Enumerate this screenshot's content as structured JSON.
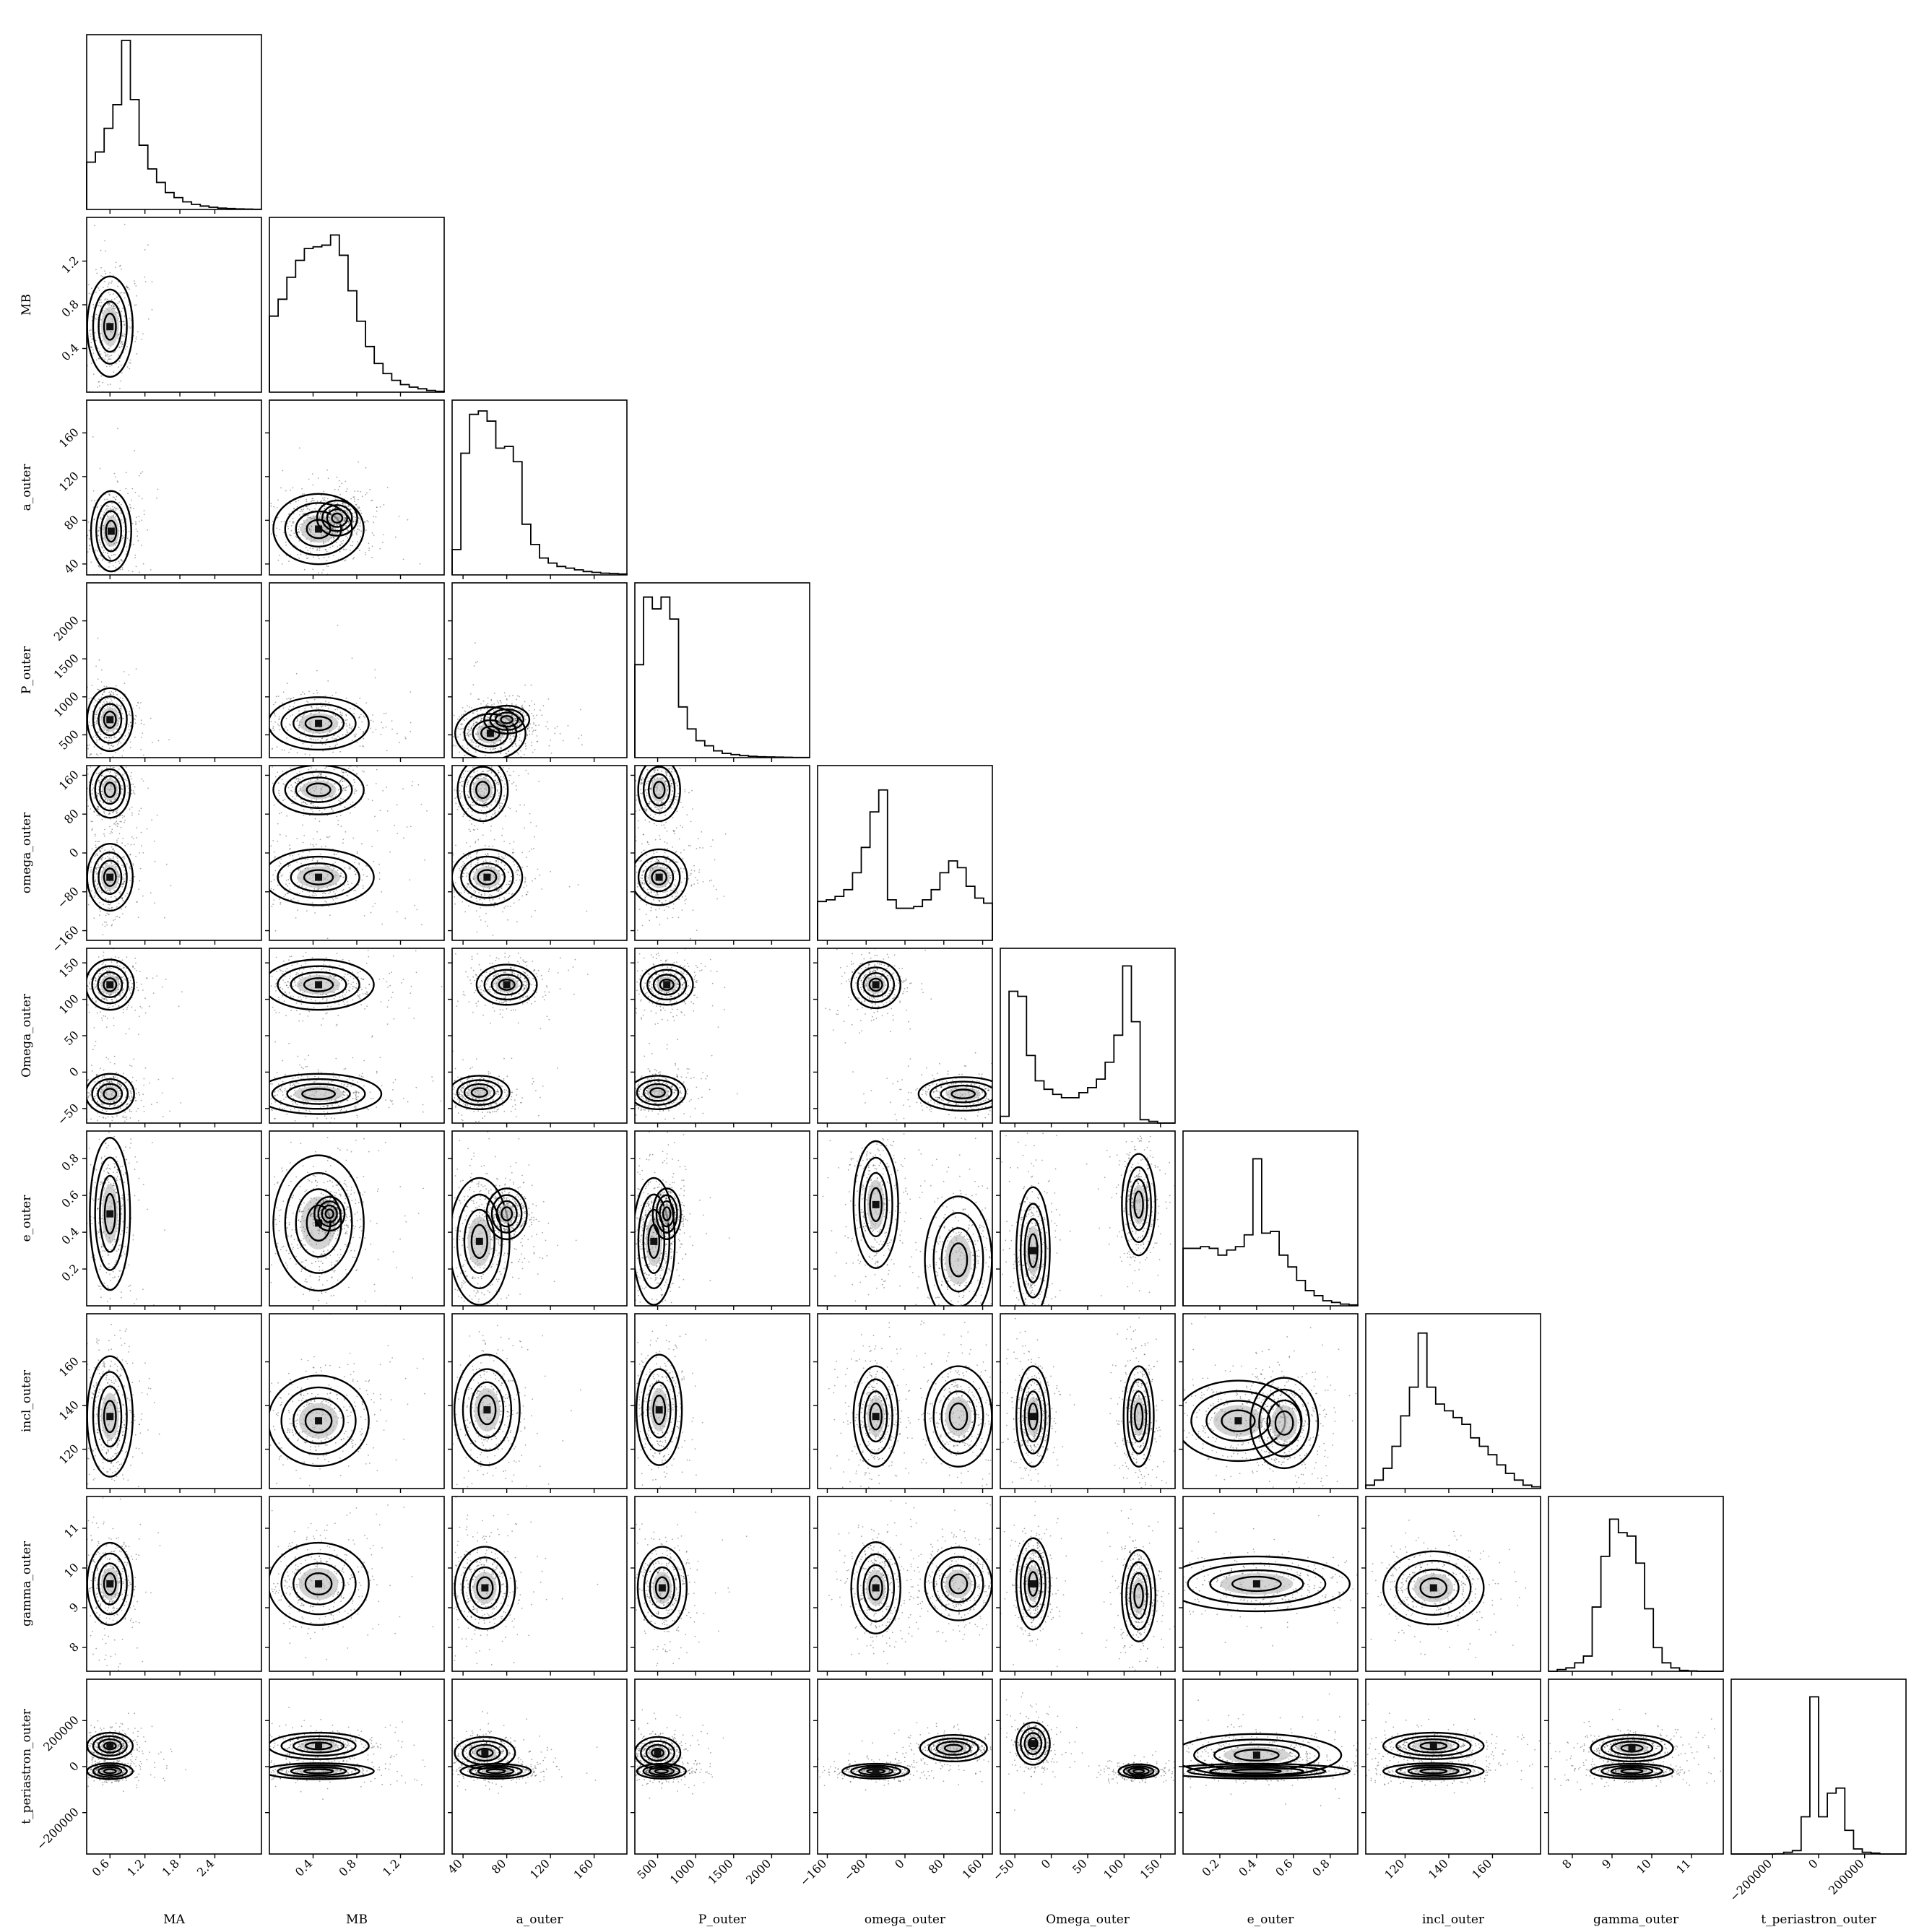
{
  "chart_data": {
    "type": "corner",
    "parameters": [
      {
        "name": "MA",
        "range": [
          0.2,
          3.2
        ],
        "ticks": [
          0.6,
          1.2,
          1.8,
          2.4
        ],
        "tick_labels": [
          "0.6",
          "1.2",
          "1.8",
          "2.4"
        ],
        "mode": 0.6,
        "hist": [
          0.28,
          0.34,
          0.48,
          0.62,
          1.0,
          0.65,
          0.38,
          0.24,
          0.16,
          0.1,
          0.07,
          0.045,
          0.03,
          0.02,
          0.013,
          0.008,
          0.005,
          0.003,
          0.002,
          0.001
        ]
      },
      {
        "name": "MB",
        "range": [
          0.0,
          1.6
        ],
        "ticks": [
          0.4,
          0.8,
          1.2
        ],
        "tick_labels": [
          "0.4",
          "0.8",
          "1.2"
        ],
        "mode": 0.5,
        "hist": [
          0.45,
          0.55,
          0.68,
          0.78,
          0.85,
          0.86,
          0.87,
          0.93,
          0.81,
          0.6,
          0.42,
          0.27,
          0.17,
          0.11,
          0.07,
          0.045,
          0.03,
          0.02,
          0.01,
          0.005
        ]
      },
      {
        "name": "a_outer",
        "range": [
          30,
          190
        ],
        "ticks": [
          40,
          80,
          120,
          160
        ],
        "tick_labels": [
          "40",
          "80",
          "120",
          "160"
        ],
        "mode": 80,
        "hist": [
          0.15,
          0.72,
          0.95,
          0.97,
          0.91,
          0.75,
          0.76,
          0.67,
          0.3,
          0.18,
          0.1,
          0.07,
          0.05,
          0.04,
          0.03,
          0.02,
          0.015,
          0.01,
          0.008,
          0.005
        ]
      },
      {
        "name": "P_outer",
        "range": [
          200,
          2500
        ],
        "ticks": [
          500,
          1000,
          1500,
          2000
        ],
        "tick_labels": [
          "500",
          "1000",
          "1500",
          "2000"
        ],
        "mode": 620,
        "hist": [
          0.55,
          0.95,
          0.88,
          0.95,
          0.82,
          0.3,
          0.17,
          0.1,
          0.07,
          0.04,
          0.025,
          0.018,
          0.012,
          0.008,
          0.005,
          0.004,
          0.003,
          0.002,
          0.001,
          0.001
        ]
      },
      {
        "name": "omega_outer",
        "range": [
          -180,
          180
        ],
        "ticks": [
          -160,
          -80,
          0,
          80,
          160
        ],
        "tick_labels": [
          "−160",
          "−80",
          "0",
          "80",
          "160"
        ],
        "mode": -60,
        "hist": [
          0.23,
          0.24,
          0.26,
          0.3,
          0.4,
          0.55,
          0.76,
          0.89,
          0.24,
          0.19,
          0.19,
          0.2,
          0.24,
          0.3,
          0.4,
          0.47,
          0.43,
          0.32,
          0.25,
          0.22
        ]
      },
      {
        "name": "Omega_outer",
        "range": [
          -70,
          170
        ],
        "ticks": [
          -50,
          0,
          50,
          100,
          150
        ],
        "tick_labels": [
          "−50",
          "0",
          "50",
          "100",
          "150"
        ],
        "mode": 120,
        "hist": [
          0.04,
          0.78,
          0.75,
          0.4,
          0.25,
          0.2,
          0.17,
          0.15,
          0.15,
          0.18,
          0.21,
          0.26,
          0.36,
          0.52,
          0.93,
          0.6,
          0.02,
          0.01,
          0.0,
          0.0
        ]
      },
      {
        "name": "e_outer",
        "range": [
          0.0,
          0.95
        ],
        "ticks": [
          0.2,
          0.4,
          0.6,
          0.8
        ],
        "tick_labels": [
          "0.2",
          "0.4",
          "0.6",
          "0.8"
        ],
        "mode": 0.5,
        "hist": [
          0.34,
          0.34,
          0.35,
          0.34,
          0.3,
          0.33,
          0.35,
          0.42,
          0.87,
          0.43,
          0.44,
          0.3,
          0.23,
          0.15,
          0.09,
          0.06,
          0.03,
          0.02,
          0.01,
          0.005
        ]
      },
      {
        "name": "incl_outer",
        "range": [
          102,
          182
        ],
        "ticks": [
          120,
          140,
          160
        ],
        "tick_labels": [
          "120",
          "140",
          "160"
        ],
        "mode": 128,
        "hist": [
          0.02,
          0.05,
          0.12,
          0.25,
          0.43,
          0.6,
          0.92,
          0.6,
          0.5,
          0.46,
          0.42,
          0.38,
          0.3,
          0.25,
          0.2,
          0.14,
          0.09,
          0.05,
          0.02,
          0.01
        ]
      },
      {
        "name": "gamma_outer",
        "range": [
          7.4,
          11.8
        ],
        "ticks": [
          8,
          9,
          10,
          11
        ],
        "tick_labels": [
          "8",
          "9",
          "10",
          "11"
        ],
        "mode": 8.8,
        "hist": [
          0.0,
          0.01,
          0.02,
          0.05,
          0.09,
          0.38,
          0.68,
          0.9,
          0.82,
          0.8,
          0.64,
          0.37,
          0.14,
          0.05,
          0.02,
          0.005,
          0.002,
          0.0,
          0.0,
          0.0
        ]
      },
      {
        "name": "t_periastron_outer",
        "range": [
          -380000,
          380000
        ],
        "ticks": [
          -200000,
          0,
          200000
        ],
        "tick_labels": [
          "−200000",
          "0",
          "200000"
        ],
        "mode": -40000,
        "hist": [
          0.0,
          0.0,
          0.0,
          0.0,
          0.0,
          0.001,
          0.01,
          0.02,
          0.22,
          0.93,
          0.22,
          0.36,
          0.39,
          0.14,
          0.03,
          0.01,
          0.005,
          0.0,
          0.0,
          0.0
        ]
      }
    ],
    "blobs": {
      "1,0": [
        {
          "c": [
            0.6,
            0.6
          ],
          "s": [
            0.17,
            0.2
          ]
        }
      ],
      "2,0": [
        {
          "c": [
            0.62,
            70
          ],
          "s": [
            0.15,
            16
          ]
        }
      ],
      "2,1": [
        {
          "c": [
            0.45,
            72
          ],
          "s": [
            0.18,
            14
          ]
        },
        {
          "c": [
            0.62,
            82
          ],
          "s": [
            0.08,
            7
          ]
        }
      ],
      "3,0": [
        {
          "c": [
            0.6,
            700
          ],
          "s": [
            0.17,
            180
          ]
        }
      ],
      "3,1": [
        {
          "c": [
            0.45,
            650
          ],
          "s": [
            0.2,
            150
          ]
        }
      ],
      "3,2": [
        {
          "c": [
            65,
            520
          ],
          "s": [
            14,
            150
          ]
        },
        {
          "c": [
            80,
            700
          ],
          "s": [
            9,
            80
          ]
        }
      ],
      "4,0": [
        {
          "c": [
            0.6,
            -50
          ],
          "s": [
            0.17,
            30
          ]
        },
        {
          "c": [
            0.6,
            130
          ],
          "s": [
            0.15,
            25
          ]
        }
      ],
      "4,1": [
        {
          "c": [
            0.45,
            -50
          ],
          "s": [
            0.22,
            25
          ]
        },
        {
          "c": [
            0.45,
            130
          ],
          "s": [
            0.18,
            22
          ]
        }
      ],
      "4,2": [
        {
          "c": [
            62,
            -50
          ],
          "s": [
            14,
            25
          ]
        },
        {
          "c": [
            58,
            130
          ],
          "s": [
            10,
            28
          ]
        }
      ],
      "4,3": [
        {
          "c": [
            520,
            -50
          ],
          "s": [
            160,
            25
          ]
        },
        {
          "c": [
            520,
            130
          ],
          "s": [
            120,
            28
          ]
        }
      ],
      "5,0": [
        {
          "c": [
            0.6,
            120
          ],
          "s": [
            0.18,
            15
          ]
        },
        {
          "c": [
            0.6,
            -30
          ],
          "s": [
            0.18,
            12
          ]
        }
      ],
      "5,1": [
        {
          "c": [
            0.45,
            120
          ],
          "s": [
            0.22,
            15
          ]
        },
        {
          "c": [
            0.45,
            -30
          ],
          "s": [
            0.25,
            12
          ]
        }
      ],
      "5,2": [
        {
          "c": [
            80,
            120
          ],
          "s": [
            12,
            12
          ]
        },
        {
          "c": [
            55,
            -28
          ],
          "s": [
            12,
            10
          ]
        }
      ],
      "5,3": [
        {
          "c": [
            620,
            120
          ],
          "s": [
            150,
            12
          ]
        },
        {
          "c": [
            500,
            -28
          ],
          "s": [
            160,
            10
          ]
        }
      ],
      "5,4": [
        {
          "c": [
            -60,
            120
          ],
          "s": [
            22,
            14
          ]
        },
        {
          "c": [
            120,
            -30
          ],
          "s": [
            40,
            10
          ]
        }
      ],
      "6,0": [
        {
          "c": [
            0.6,
            0.5
          ],
          "s": [
            0.15,
            0.18
          ]
        }
      ],
      "6,1": [
        {
          "c": [
            0.45,
            0.45
          ],
          "s": [
            0.18,
            0.16
          ]
        },
        {
          "c": [
            0.55,
            0.5
          ],
          "s": [
            0.06,
            0.04
          ]
        }
      ],
      "6,2": [
        {
          "c": [
            55,
            0.35
          ],
          "s": [
            12,
            0.15
          ]
        },
        {
          "c": [
            80,
            0.5
          ],
          "s": [
            8,
            0.06
          ]
        }
      ],
      "6,3": [
        {
          "c": [
            450,
            0.35
          ],
          "s": [
            120,
            0.15
          ]
        },
        {
          "c": [
            620,
            0.5
          ],
          "s": [
            80,
            0.06
          ]
        }
      ],
      "6,4": [
        {
          "c": [
            -60,
            0.55
          ],
          "s": [
            20,
            0.15
          ]
        },
        {
          "c": [
            110,
            0.25
          ],
          "s": [
            30,
            0.15
          ]
        }
      ],
      "6,5": [
        {
          "c": [
            -25,
            0.3
          ],
          "s": [
            10,
            0.15
          ]
        },
        {
          "c": [
            120,
            0.55
          ],
          "s": [
            10,
            0.12
          ]
        }
      ],
      "7,0": [
        {
          "c": [
            0.6,
            135
          ],
          "s": [
            0.17,
            12
          ]
        }
      ],
      "7,1": [
        {
          "c": [
            0.45,
            133
          ],
          "s": [
            0.2,
            9
          ]
        }
      ],
      "7,2": [
        {
          "c": [
            62,
            138
          ],
          "s": [
            13,
            11
          ]
        }
      ],
      "7,3": [
        {
          "c": [
            520,
            138
          ],
          "s": [
            130,
            11
          ]
        }
      ],
      "7,4": [
        {
          "c": [
            -60,
            135
          ],
          "s": [
            20,
            10
          ]
        },
        {
          "c": [
            110,
            135
          ],
          "s": [
            30,
            10
          ]
        }
      ],
      "7,5": [
        {
          "c": [
            -25,
            135
          ],
          "s": [
            10,
            10
          ]
        },
        {
          "c": [
            120,
            135
          ],
          "s": [
            9,
            10
          ]
        }
      ],
      "7,6": [
        {
          "c": [
            0.3,
            133
          ],
          "s": [
            0.15,
            8
          ]
        },
        {
          "c": [
            0.55,
            132
          ],
          "s": [
            0.08,
            9
          ]
        }
      ],
      "8,0": [
        {
          "c": [
            0.6,
            9.6
          ],
          "s": [
            0.17,
            0.45
          ]
        }
      ],
      "8,1": [
        {
          "c": [
            0.45,
            9.6
          ],
          "s": [
            0.2,
            0.45
          ]
        }
      ],
      "8,2": [
        {
          "c": [
            60,
            9.5
          ],
          "s": [
            12,
            0.45
          ]
        }
      ],
      "8,3": [
        {
          "c": [
            560,
            9.5
          ],
          "s": [
            140,
            0.45
          ]
        }
      ],
      "8,4": [
        {
          "c": [
            -60,
            9.5
          ],
          "s": [
            22,
            0.5
          ]
        },
        {
          "c": [
            110,
            9.6
          ],
          "s": [
            30,
            0.4
          ]
        }
      ],
      "8,5": [
        {
          "c": [
            -25,
            9.6
          ],
          "s": [
            10,
            0.5
          ]
        },
        {
          "c": [
            120,
            9.3
          ],
          "s": [
            10,
            0.5
          ]
        }
      ],
      "8,6": [
        {
          "c": [
            0.4,
            9.6
          ],
          "s": [
            0.22,
            0.3
          ]
        }
      ],
      "8,7": [
        {
          "c": [
            133,
            9.5
          ],
          "s": [
            10,
            0.4
          ]
        }
      ],
      "9,0": [
        {
          "c": [
            0.6,
            90000
          ],
          "s": [
            0.17,
            25000
          ]
        },
        {
          "c": [
            0.6,
            -20000
          ],
          "s": [
            0.17,
            15000
          ]
        }
      ],
      "9,1": [
        {
          "c": [
            0.45,
            90000
          ],
          "s": [
            0.2,
            25000
          ]
        },
        {
          "c": [
            0.45,
            -20000
          ],
          "s": [
            0.22,
            15000
          ]
        }
      ],
      "9,2": [
        {
          "c": [
            60,
            60000
          ],
          "s": [
            12,
            30000
          ]
        },
        {
          "c": [
            70,
            -20000
          ],
          "s": [
            14,
            14000
          ]
        }
      ],
      "9,3": [
        {
          "c": [
            500,
            60000
          ],
          "s": [
            130,
            30000
          ]
        },
        {
          "c": [
            550,
            -20000
          ],
          "s": [
            140,
            14000
          ]
        }
      ],
      "9,4": [
        {
          "c": [
            -60,
            -20000
          ],
          "s": [
            30,
            14000
          ]
        },
        {
          "c": [
            100,
            80000
          ],
          "s": [
            30,
            25000
          ]
        }
      ],
      "9,5": [
        {
          "c": [
            -25,
            100000
          ],
          "s": [
            10,
            40000
          ]
        },
        {
          "c": [
            120,
            -20000
          ],
          "s": [
            12,
            13000
          ]
        }
      ],
      "9,6": [
        {
          "c": [
            0.4,
            50000
          ],
          "s": [
            0.2,
            40000
          ]
        },
        {
          "c": [
            0.4,
            -20000
          ],
          "s": [
            0.22,
            14000
          ]
        }
      ],
      "9,7": [
        {
          "c": [
            133,
            90000
          ],
          "s": [
            10,
            25000
          ]
        },
        {
          "c": [
            133,
            -20000
          ],
          "s": [
            10,
            15000
          ]
        }
      ],
      "9,8": [
        {
          "c": [
            9.5,
            80000
          ],
          "s": [
            0.45,
            25000
          ]
        },
        {
          "c": [
            9.5,
            -20000
          ],
          "s": [
            0.45,
            14000
          ]
        }
      ]
    }
  }
}
